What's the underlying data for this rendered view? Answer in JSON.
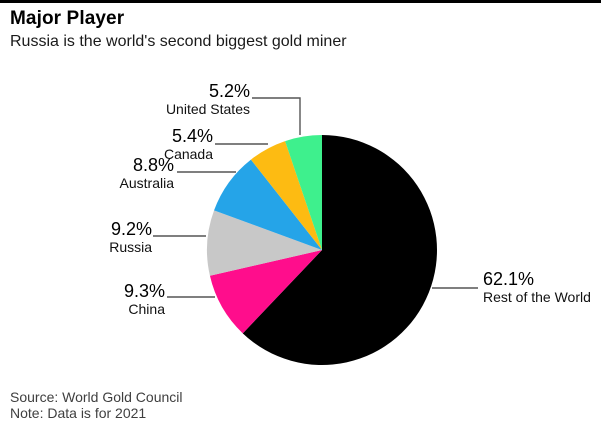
{
  "chart_data": {
    "type": "pie",
    "title": "Major Player",
    "subtitle": "Russia is the world's second biggest gold miner",
    "unit": "percent",
    "direction": "clockwise",
    "start_angle_deg": 0,
    "slices": [
      {
        "label": "Rest of the World",
        "value": 62.1,
        "display": "62.1%",
        "color": "#000000"
      },
      {
        "label": "China",
        "value": 9.3,
        "display": "9.3%",
        "color": "#ff0d8c"
      },
      {
        "label": "Russia",
        "value": 9.2,
        "display": "9.2%",
        "color": "#c8c8c8"
      },
      {
        "label": "Australia",
        "value": 8.8,
        "display": "8.8%",
        "color": "#25a4e8"
      },
      {
        "label": "Canada",
        "value": 5.4,
        "display": "5.4%",
        "color": "#fdbb12"
      },
      {
        "label": "United States",
        "value": 5.2,
        "display": "5.2%",
        "color": "#3ef08d"
      }
    ],
    "legend_position": "callouts",
    "leader_line_color": "#555555",
    "accent_bar_color": "#000000",
    "background": "#ffffff",
    "source": "Source: World Gold Council",
    "note": "Note: Data is for 2021"
  }
}
